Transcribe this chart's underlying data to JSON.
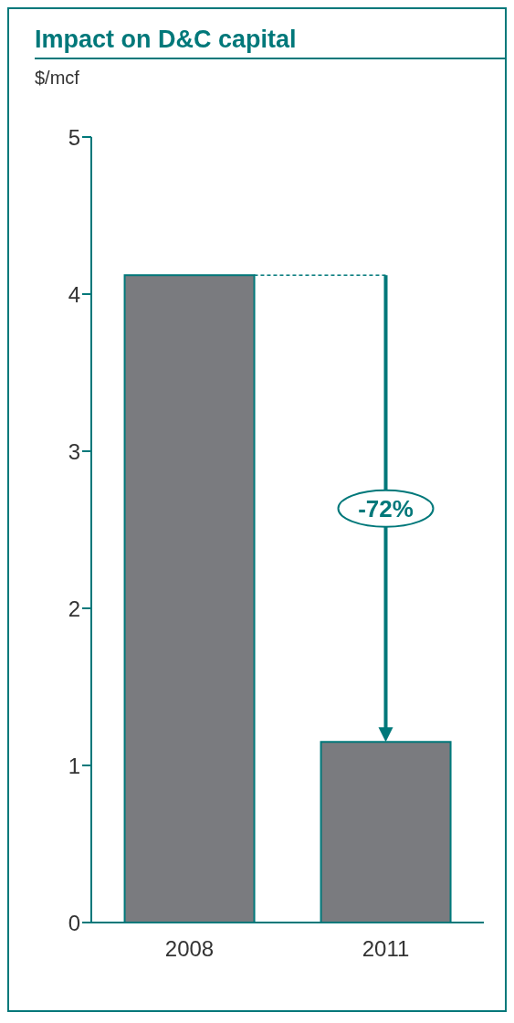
{
  "chart_data": {
    "type": "bar",
    "title": "Impact on D&C capital",
    "subtitle": "$/mcf",
    "categories": [
      "2008",
      "2011"
    ],
    "values": [
      4.12,
      1.15
    ],
    "color": "#7a7b7f",
    "ylim": [
      0,
      5
    ],
    "yticks": [
      0,
      1,
      2,
      3,
      4,
      5
    ],
    "grid": false,
    "annotations": [
      "-72%"
    ]
  }
}
